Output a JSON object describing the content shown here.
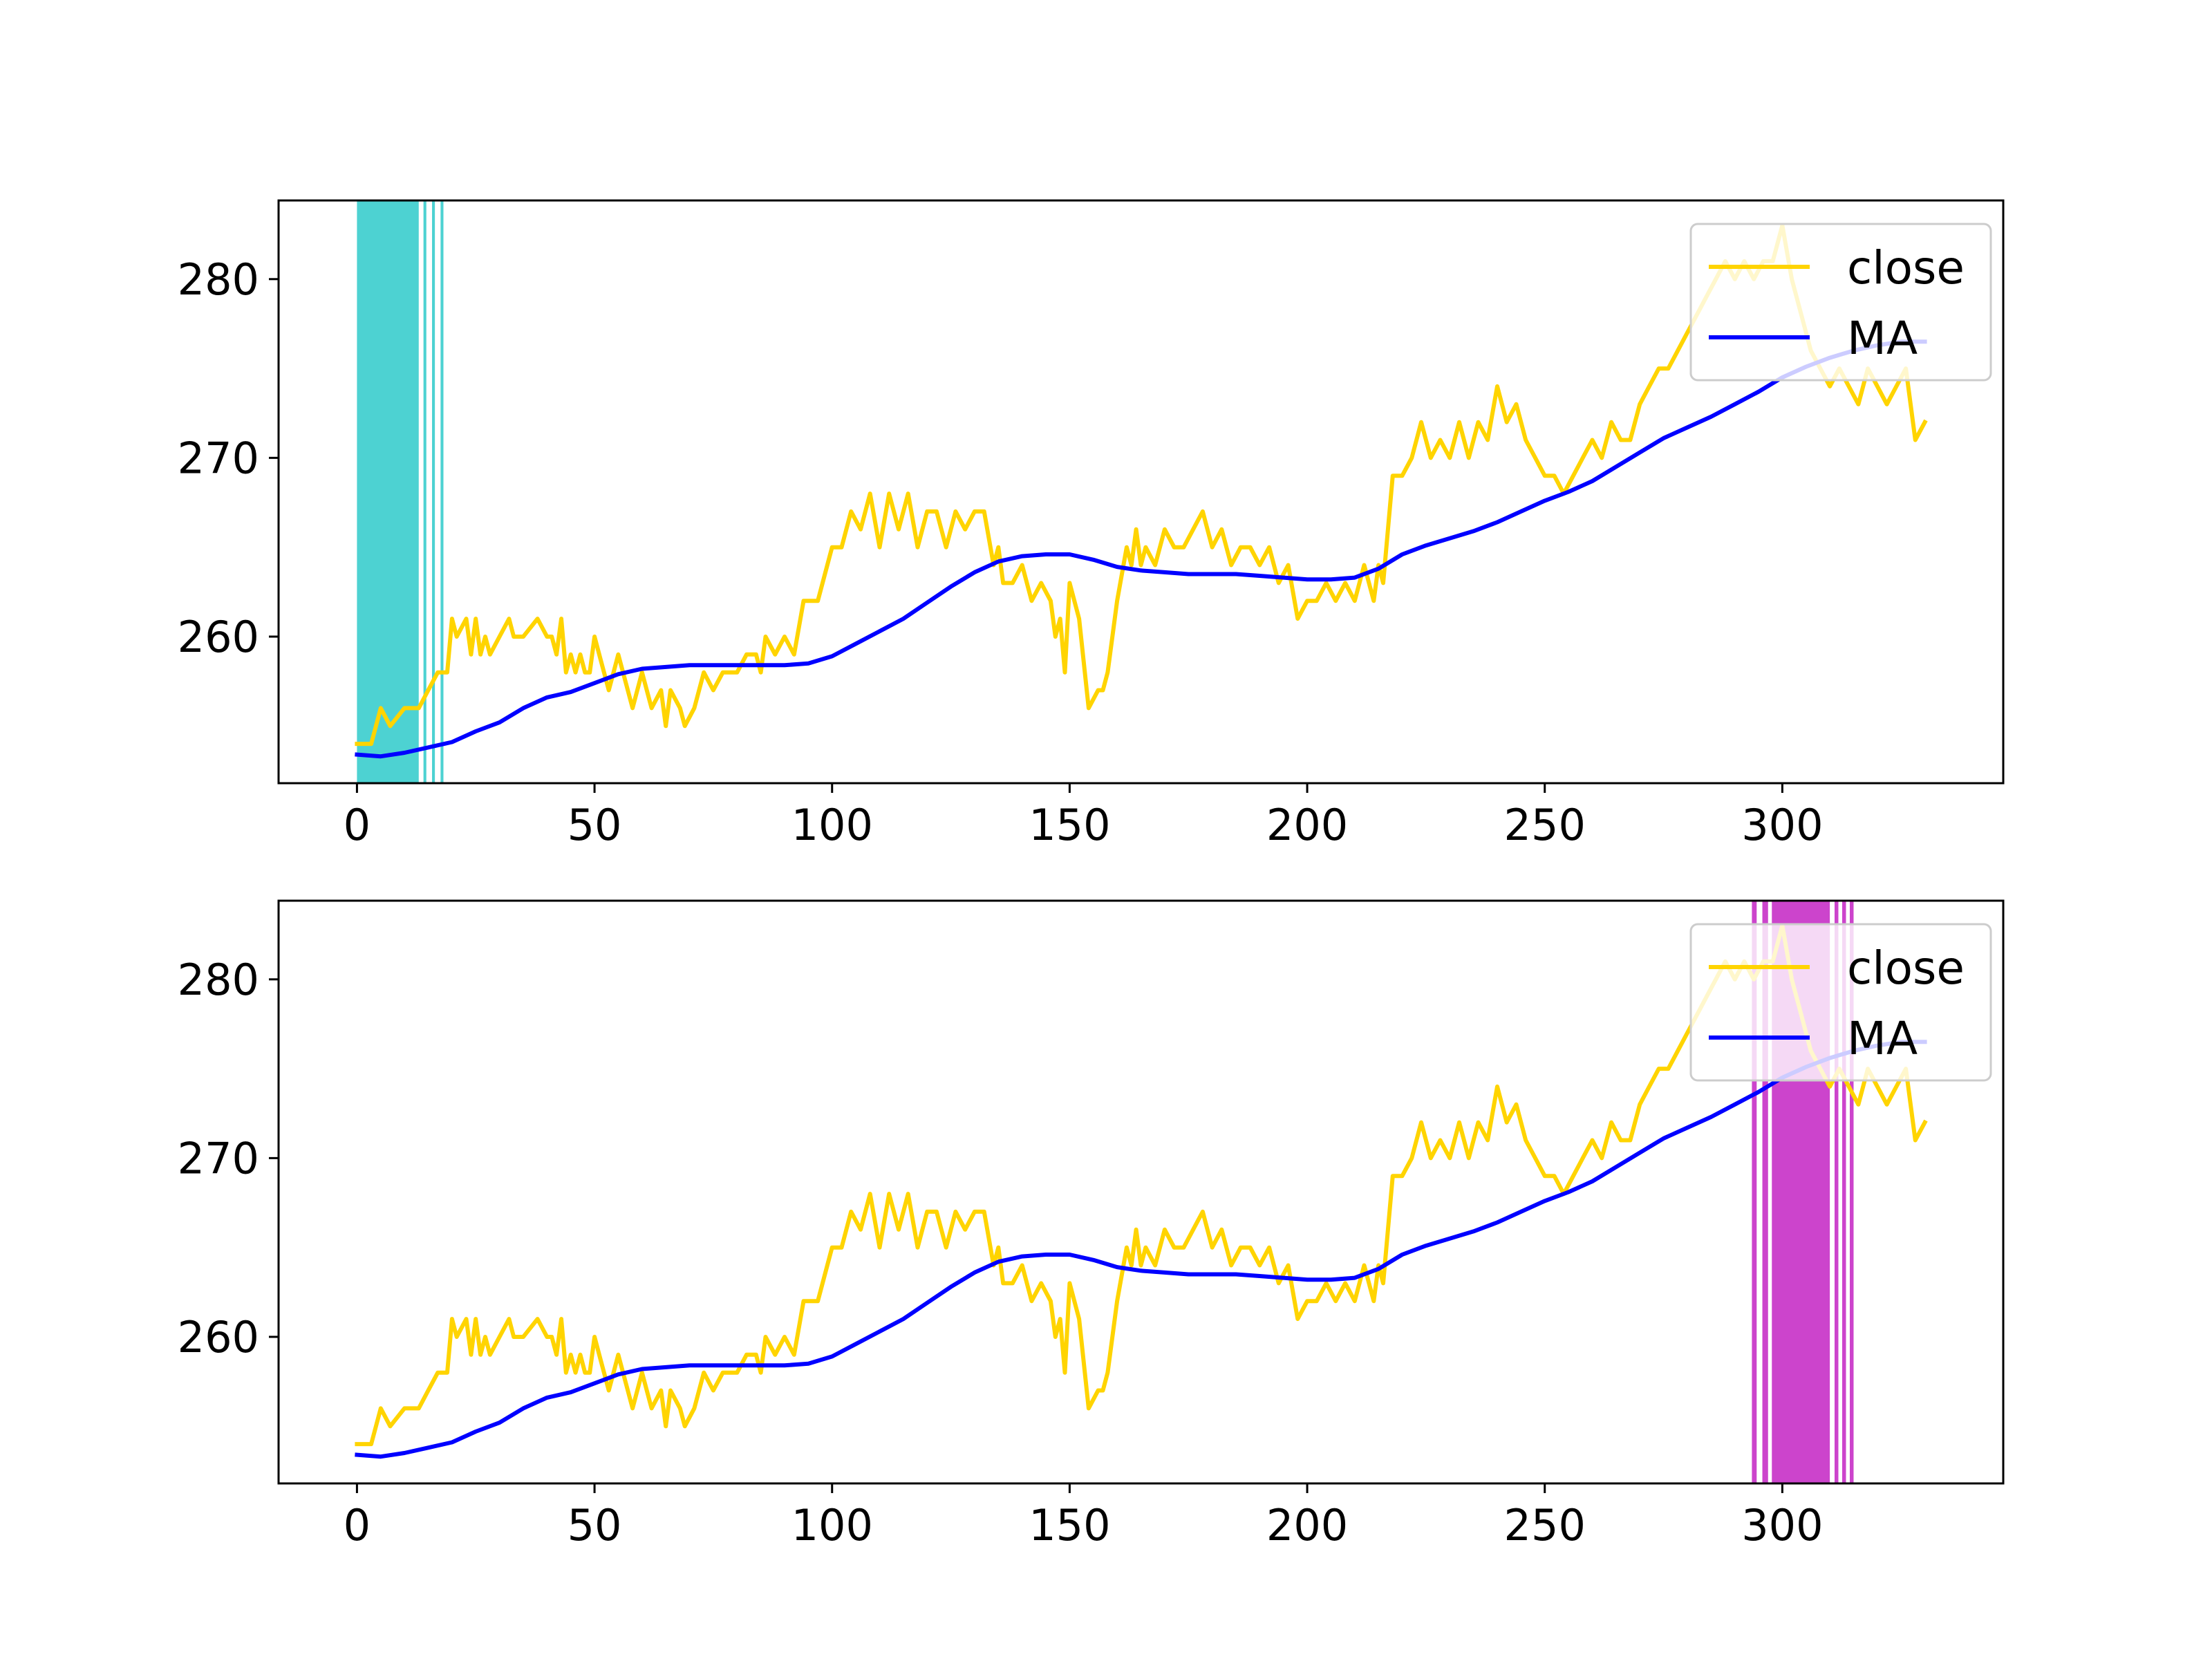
{
  "figure": {
    "background": "#ffffff"
  },
  "chart_data": [
    {
      "type": "line",
      "panel": "top",
      "xlim": [
        -16.5,
        346.5
      ],
      "ylim": [
        251.8,
        284.4
      ],
      "xticks": [
        0,
        50,
        100,
        150,
        200,
        250,
        300
      ],
      "yticks": [
        260,
        270,
        280
      ],
      "xtick_labels": [
        "0",
        "50",
        "100",
        "150",
        "200",
        "250",
        "300"
      ],
      "ytick_labels": [
        "260",
        "270",
        "280"
      ],
      "grid": false,
      "legend": {
        "placement": "upper right",
        "entries": [
          "close",
          "MA"
        ]
      },
      "highlight_color": "#4dd2d2",
      "highlight_ranges": [
        [
          0,
          13
        ],
        [
          14,
          14.6
        ],
        [
          15.8,
          16.4
        ],
        [
          17.6,
          18.2
        ]
      ],
      "series": [
        {
          "name": "close",
          "color": "#ffd400",
          "x": [
            0,
            3,
            5,
            7,
            10,
            13,
            15,
            17,
            19,
            20,
            21,
            23,
            24,
            25,
            26,
            27,
            28,
            30,
            32,
            33,
            35,
            38,
            40,
            41,
            42,
            43,
            44,
            45,
            46,
            47,
            48,
            49,
            50,
            51,
            52,
            53,
            54,
            55,
            57,
            58,
            60,
            62,
            64,
            65,
            66,
            68,
            69,
            71,
            73,
            75,
            77,
            80,
            82,
            84,
            85,
            86,
            88,
            90,
            92,
            94,
            97,
            100,
            102,
            104,
            106,
            108,
            110,
            112,
            114,
            116,
            118,
            120,
            122,
            124,
            126,
            128,
            130,
            132,
            134,
            135,
            136,
            138,
            140,
            142,
            144,
            146,
            147,
            148,
            149,
            150,
            152,
            154,
            156,
            157,
            158,
            160,
            162,
            163,
            164,
            165,
            166,
            168,
            170,
            172,
            174,
            176,
            178,
            180,
            182,
            184,
            186,
            188,
            190,
            192,
            194,
            196,
            198,
            200,
            202,
            204,
            206,
            208,
            210,
            212,
            213,
            214,
            215,
            216,
            218,
            220,
            222,
            224,
            226,
            228,
            230,
            232,
            234,
            236,
            238,
            240,
            242,
            244,
            246,
            248,
            250,
            252,
            254,
            256,
            258,
            260,
            262,
            264,
            266,
            268,
            270,
            272,
            274,
            276,
            278,
            280,
            282,
            284,
            286,
            288,
            290,
            292,
            294,
            296,
            298,
            300,
            302,
            304,
            306,
            308,
            310,
            312,
            314,
            316,
            318,
            320,
            322,
            324,
            326,
            328,
            330
          ],
          "values": [
            254,
            254,
            256,
            255,
            256,
            256,
            257,
            258,
            258,
            261,
            260,
            261,
            259,
            261,
            259,
            260,
            259,
            260,
            261,
            260,
            260,
            261,
            260,
            260,
            259,
            261,
            258,
            259,
            258,
            259,
            258,
            258,
            260,
            259,
            258,
            257,
            258,
            259,
            257,
            256,
            258,
            256,
            257,
            255,
            257,
            256,
            255,
            256,
            258,
            257,
            258,
            258,
            259,
            259,
            258,
            260,
            259,
            260,
            259,
            262,
            262,
            265,
            265,
            267,
            266,
            268,
            265,
            268,
            266,
            268,
            265,
            267,
            267,
            265,
            267,
            266,
            267,
            267,
            264,
            265,
            263,
            263,
            264,
            262,
            263,
            262,
            260,
            261,
            258,
            263,
            261,
            256,
            257,
            257,
            258,
            262,
            265,
            264,
            266,
            264,
            265,
            264,
            266,
            265,
            265,
            266,
            267,
            265,
            266,
            264,
            265,
            265,
            264,
            265,
            263,
            264,
            261,
            262,
            262,
            263,
            262,
            263,
            262,
            264,
            263,
            262,
            264,
            263,
            269,
            269,
            270,
            272,
            270,
            271,
            270,
            272,
            270,
            272,
            271,
            274,
            272,
            273,
            271,
            270,
            269,
            269,
            268,
            269,
            270,
            271,
            270,
            272,
            271,
            271,
            273,
            274,
            275,
            275,
            276,
            277,
            278,
            279,
            280,
            281,
            280,
            281,
            280,
            281,
            281,
            283,
            280,
            278,
            276,
            275,
            274,
            275,
            274,
            273,
            275,
            274,
            273,
            274,
            275,
            271,
            272
          ]
        },
        {
          "name": "MA",
          "color": "#0000ff",
          "x": [
            0,
            5,
            10,
            15,
            20,
            25,
            30,
            35,
            40,
            45,
            50,
            55,
            60,
            65,
            70,
            75,
            80,
            85,
            90,
            95,
            100,
            105,
            110,
            115,
            120,
            125,
            130,
            135,
            140,
            145,
            150,
            155,
            160,
            165,
            170,
            175,
            180,
            185,
            190,
            195,
            200,
            205,
            210,
            215,
            220,
            225,
            230,
            235,
            240,
            245,
            250,
            255,
            260,
            265,
            270,
            275,
            280,
            285,
            290,
            295,
            300,
            305,
            310,
            315,
            320,
            325,
            330
          ],
          "values": [
            253.4,
            253.3,
            253.5,
            253.8,
            254.1,
            254.7,
            255.2,
            256.0,
            256.6,
            256.9,
            257.4,
            257.9,
            258.2,
            258.3,
            258.4,
            258.4,
            258.4,
            258.4,
            258.4,
            258.5,
            258.9,
            259.6,
            260.3,
            261.0,
            261.9,
            262.8,
            263.6,
            264.2,
            264.5,
            264.6,
            264.6,
            264.3,
            263.9,
            263.7,
            263.6,
            263.5,
            263.5,
            263.5,
            263.4,
            263.3,
            263.2,
            263.2,
            263.3,
            263.8,
            264.6,
            265.1,
            265.5,
            265.9,
            266.4,
            267.0,
            267.6,
            268.1,
            268.7,
            269.5,
            270.3,
            271.1,
            271.7,
            272.3,
            273.0,
            273.7,
            274.5,
            275.1,
            275.6,
            276.0,
            276.3,
            276.5,
            276.5
          ]
        }
      ]
    },
    {
      "type": "line",
      "panel": "bottom",
      "xlim": [
        -16.5,
        346.5
      ],
      "ylim": [
        251.8,
        284.4
      ],
      "xticks": [
        0,
        50,
        100,
        150,
        200,
        250,
        300
      ],
      "yticks": [
        260,
        270,
        280
      ],
      "xtick_labels": [
        "0",
        "50",
        "100",
        "150",
        "200",
        "250",
        "300"
      ],
      "ytick_labels": [
        "260",
        "270",
        "280"
      ],
      "grid": false,
      "legend": {
        "placement": "upper right",
        "entries": [
          "close",
          "MA"
        ]
      },
      "highlight_color": "#cc44cc",
      "highlight_ranges": [
        [
          293.6,
          294.6
        ],
        [
          295.8,
          297.0
        ],
        [
          297.8,
          310.0
        ],
        [
          311.0,
          311.8
        ],
        [
          312.6,
          313.4
        ],
        [
          314.2,
          315.0
        ]
      ],
      "series": [
        {
          "name": "close",
          "color": "#ffd400",
          "x": [
            0,
            3,
            5,
            7,
            10,
            13,
            15,
            17,
            19,
            20,
            21,
            23,
            24,
            25,
            26,
            27,
            28,
            30,
            32,
            33,
            35,
            38,
            40,
            41,
            42,
            43,
            44,
            45,
            46,
            47,
            48,
            49,
            50,
            51,
            52,
            53,
            54,
            55,
            57,
            58,
            60,
            62,
            64,
            65,
            66,
            68,
            69,
            71,
            73,
            75,
            77,
            80,
            82,
            84,
            85,
            86,
            88,
            90,
            92,
            94,
            97,
            100,
            102,
            104,
            106,
            108,
            110,
            112,
            114,
            116,
            118,
            120,
            122,
            124,
            126,
            128,
            130,
            132,
            134,
            135,
            136,
            138,
            140,
            142,
            144,
            146,
            147,
            148,
            149,
            150,
            152,
            154,
            156,
            157,
            158,
            160,
            162,
            163,
            164,
            165,
            166,
            168,
            170,
            172,
            174,
            176,
            178,
            180,
            182,
            184,
            186,
            188,
            190,
            192,
            194,
            196,
            198,
            200,
            202,
            204,
            206,
            208,
            210,
            212,
            213,
            214,
            215,
            216,
            218,
            220,
            222,
            224,
            226,
            228,
            230,
            232,
            234,
            236,
            238,
            240,
            242,
            244,
            246,
            248,
            250,
            252,
            254,
            256,
            258,
            260,
            262,
            264,
            266,
            268,
            270,
            272,
            274,
            276,
            278,
            280,
            282,
            284,
            286,
            288,
            290,
            292,
            294,
            296,
            298,
            300,
            302,
            304,
            306,
            308,
            310,
            312,
            314,
            316,
            318,
            320,
            322,
            324,
            326,
            328,
            330
          ],
          "values": [
            254,
            254,
            256,
            255,
            256,
            256,
            257,
            258,
            258,
            261,
            260,
            261,
            259,
            261,
            259,
            260,
            259,
            260,
            261,
            260,
            260,
            261,
            260,
            260,
            259,
            261,
            258,
            259,
            258,
            259,
            258,
            258,
            260,
            259,
            258,
            257,
            258,
            259,
            257,
            256,
            258,
            256,
            257,
            255,
            257,
            256,
            255,
            256,
            258,
            257,
            258,
            258,
            259,
            259,
            258,
            260,
            259,
            260,
            259,
            262,
            262,
            265,
            265,
            267,
            266,
            268,
            265,
            268,
            266,
            268,
            265,
            267,
            267,
            265,
            267,
            266,
            267,
            267,
            264,
            265,
            263,
            263,
            264,
            262,
            263,
            262,
            260,
            261,
            258,
            263,
            261,
            256,
            257,
            257,
            258,
            262,
            265,
            264,
            266,
            264,
            265,
            264,
            266,
            265,
            265,
            266,
            267,
            265,
            266,
            264,
            265,
            265,
            264,
            265,
            263,
            264,
            261,
            262,
            262,
            263,
            262,
            263,
            262,
            264,
            263,
            262,
            264,
            263,
            269,
            269,
            270,
            272,
            270,
            271,
            270,
            272,
            270,
            272,
            271,
            274,
            272,
            273,
            271,
            270,
            269,
            269,
            268,
            269,
            270,
            271,
            270,
            272,
            271,
            271,
            273,
            274,
            275,
            275,
            276,
            277,
            278,
            279,
            280,
            281,
            280,
            281,
            280,
            281,
            281,
            283,
            280,
            278,
            276,
            275,
            274,
            275,
            274,
            273,
            275,
            274,
            273,
            274,
            275,
            271,
            272
          ]
        },
        {
          "name": "MA",
          "color": "#0000ff",
          "x": [
            0,
            5,
            10,
            15,
            20,
            25,
            30,
            35,
            40,
            45,
            50,
            55,
            60,
            65,
            70,
            75,
            80,
            85,
            90,
            95,
            100,
            105,
            110,
            115,
            120,
            125,
            130,
            135,
            140,
            145,
            150,
            155,
            160,
            165,
            170,
            175,
            180,
            185,
            190,
            195,
            200,
            205,
            210,
            215,
            220,
            225,
            230,
            235,
            240,
            245,
            250,
            255,
            260,
            265,
            270,
            275,
            280,
            285,
            290,
            295,
            300,
            305,
            310,
            315,
            320,
            325,
            330
          ],
          "values": [
            253.4,
            253.3,
            253.5,
            253.8,
            254.1,
            254.7,
            255.2,
            256.0,
            256.6,
            256.9,
            257.4,
            257.9,
            258.2,
            258.3,
            258.4,
            258.4,
            258.4,
            258.4,
            258.4,
            258.5,
            258.9,
            259.6,
            260.3,
            261.0,
            261.9,
            262.8,
            263.6,
            264.2,
            264.5,
            264.6,
            264.6,
            264.3,
            263.9,
            263.7,
            263.6,
            263.5,
            263.5,
            263.5,
            263.4,
            263.3,
            263.2,
            263.2,
            263.3,
            263.8,
            264.6,
            265.1,
            265.5,
            265.9,
            266.4,
            267.0,
            267.6,
            268.1,
            268.7,
            269.5,
            270.3,
            271.1,
            271.7,
            272.3,
            273.0,
            273.7,
            274.5,
            275.1,
            275.6,
            276.0,
            276.3,
            276.5,
            276.5
          ]
        }
      ]
    }
  ]
}
